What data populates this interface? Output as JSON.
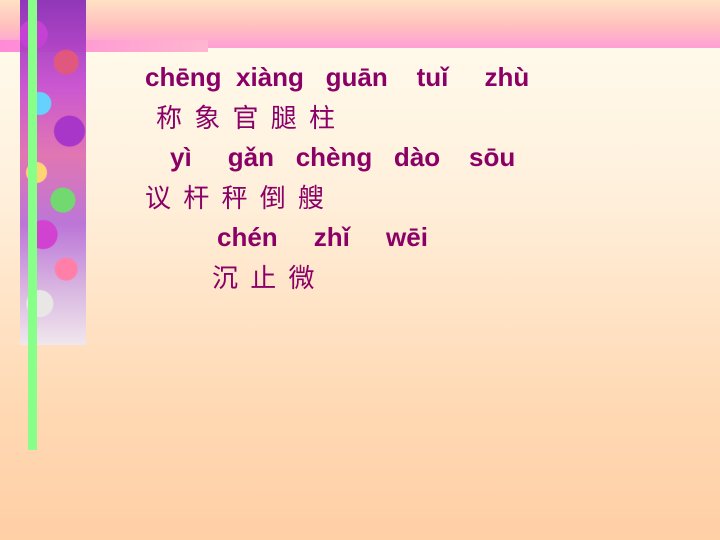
{
  "lines": [
    {
      "pinyin": "chēng  xiàng   guān    tuǐ     zhù",
      "hanzi": "称 象 官 腿 柱"
    },
    {
      "pinyin": "yì     gǎn   chèng   dào    sōu",
      "hanzi": "议 杆 秤 倒 艘"
    },
    {
      "pinyin": "chén     zhǐ     wēi",
      "hanzi": "沉 止 微"
    }
  ]
}
